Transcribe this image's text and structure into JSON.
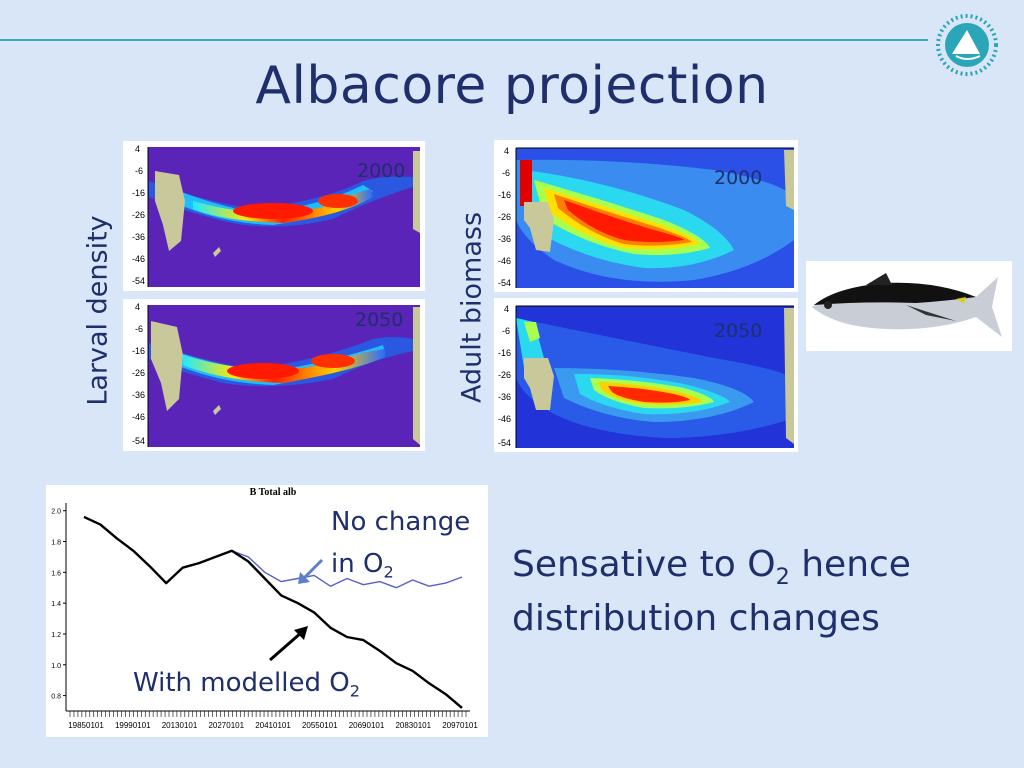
{
  "slide": {
    "title": "Albacore projection",
    "label_larval": "Larval density",
    "label_adult": "Adult biomass"
  },
  "maps": {
    "larval_2000": "2000",
    "larval_2050": "2050",
    "adult_2000": "2000",
    "adult_2050": "2050",
    "y_ticks": [
      "4",
      "-6",
      "-16",
      "-26",
      "-36",
      "-46",
      "-54"
    ]
  },
  "chart": {
    "title": "B Total alb",
    "note_top_a": "No change",
    "note_top_b": "in O",
    "note_sub": "2",
    "note_bottom_a": "With modelled O",
    "note_bottom_sub": "2"
  },
  "text": {
    "line1a": "Sensative to O",
    "line1sub": "2",
    "line1b": " hence",
    "line2": "distribution changes"
  },
  "chart_data": {
    "type": "line",
    "title": "B Total alb",
    "xlabel": "",
    "ylabel": "",
    "ylim": [
      0.7,
      2.05
    ],
    "y_ticks": [
      0.8,
      1.0,
      1.2,
      1.4,
      1.6,
      1.8,
      2.0
    ],
    "x_tick_labels": [
      "19850101",
      "19990101",
      "20130101",
      "20270101",
      "20410101",
      "20550101",
      "20690101",
      "20830101",
      "20970101"
    ],
    "x": [
      1985,
      1990,
      1995,
      2000,
      2005,
      2010,
      2015,
      2020,
      2025,
      2030,
      2035,
      2040,
      2045,
      2050,
      2055,
      2060,
      2065,
      2070,
      2075,
      2080,
      2085,
      2090,
      2095,
      2100
    ],
    "series": [
      {
        "name": "With modelled O2",
        "color": "#000000",
        "values": [
          1.96,
          1.91,
          1.82,
          1.74,
          1.64,
          1.53,
          1.63,
          1.66,
          1.7,
          1.74,
          1.67,
          1.56,
          1.45,
          1.4,
          1.34,
          1.24,
          1.18,
          1.16,
          1.09,
          1.01,
          0.96,
          0.88,
          0.81,
          0.72
        ]
      },
      {
        "name": "No change in O2",
        "color": "#5560c8",
        "values": [
          1.96,
          1.91,
          1.82,
          1.74,
          1.64,
          1.53,
          1.63,
          1.66,
          1.7,
          1.74,
          1.7,
          1.6,
          1.54,
          1.56,
          1.58,
          1.51,
          1.56,
          1.52,
          1.54,
          1.5,
          1.55,
          1.51,
          1.53,
          1.57
        ]
      }
    ]
  }
}
